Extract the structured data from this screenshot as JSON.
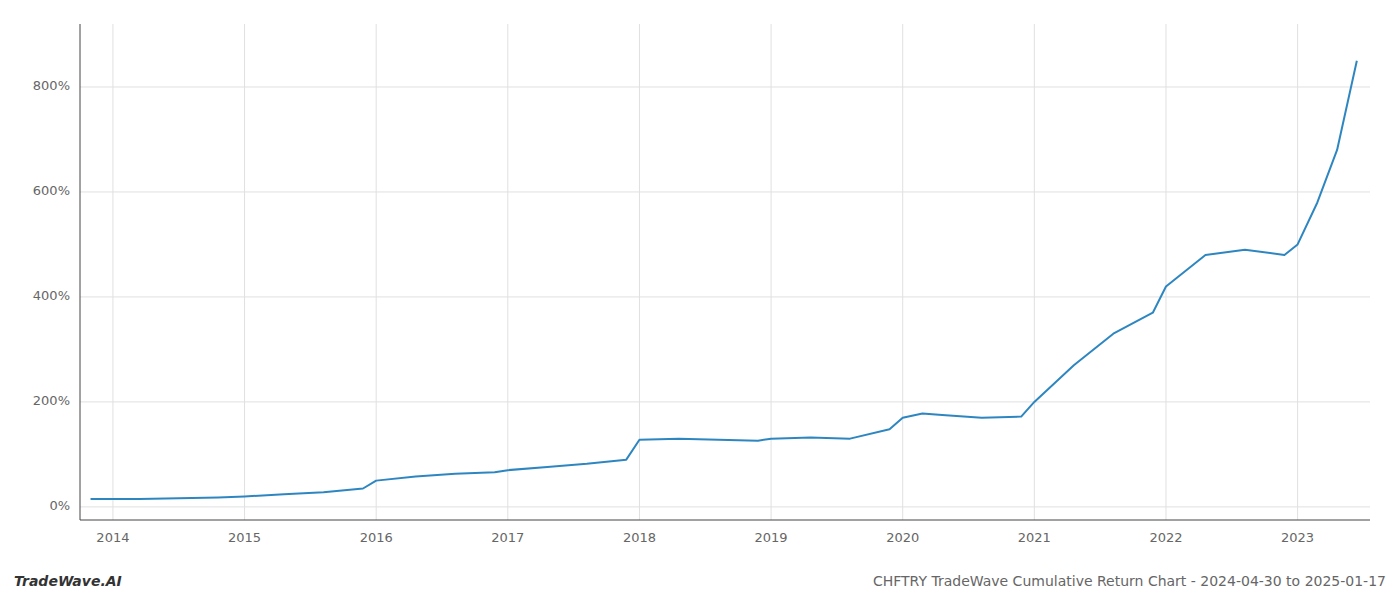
{
  "chart_data": {
    "type": "line",
    "title": "CHFTRY TradeWave Cumulative Return Chart - 2024-04-30 to 2025-01-17",
    "annotations": [
      "TradeWave.AI"
    ],
    "color": "#2e86c1",
    "grid": true,
    "x": [
      2013.83,
      2014.0,
      2014.2,
      2014.4,
      2014.6,
      2014.8,
      2015.0,
      2015.3,
      2015.6,
      2015.9,
      2016.0,
      2016.3,
      2016.6,
      2016.9,
      2017.0,
      2017.3,
      2017.6,
      2017.9,
      2018.0,
      2018.3,
      2018.6,
      2018.9,
      2019.0,
      2019.3,
      2019.6,
      2019.9,
      2020.0,
      2020.15,
      2020.3,
      2020.6,
      2020.9,
      2021.0,
      2021.3,
      2021.6,
      2021.9,
      2022.0,
      2022.3,
      2022.6,
      2022.9,
      2023.0,
      2023.15,
      2023.3,
      2023.45
    ],
    "values": [
      15,
      15,
      15,
      16,
      17,
      18,
      20,
      24,
      28,
      35,
      50,
      58,
      63,
      66,
      70,
      76,
      82,
      90,
      128,
      130,
      128,
      126,
      130,
      132,
      130,
      148,
      170,
      178,
      175,
      170,
      172,
      200,
      270,
      330,
      370,
      420,
      480,
      490,
      480,
      500,
      580,
      680,
      850
    ],
    "xlim": [
      2013.75,
      2023.55
    ],
    "xticks": [
      2014,
      2015,
      2016,
      2017,
      2018,
      2019,
      2020,
      2021,
      2022,
      2023
    ],
    "ylim": [
      -25,
      920
    ],
    "yticks": [
      {
        "value": 0,
        "label": "0%"
      },
      {
        "value": 200,
        "label": "200%"
      },
      {
        "value": 400,
        "label": "400%"
      },
      {
        "value": 600,
        "label": "600%"
      },
      {
        "value": 800,
        "label": "800%"
      }
    ]
  }
}
